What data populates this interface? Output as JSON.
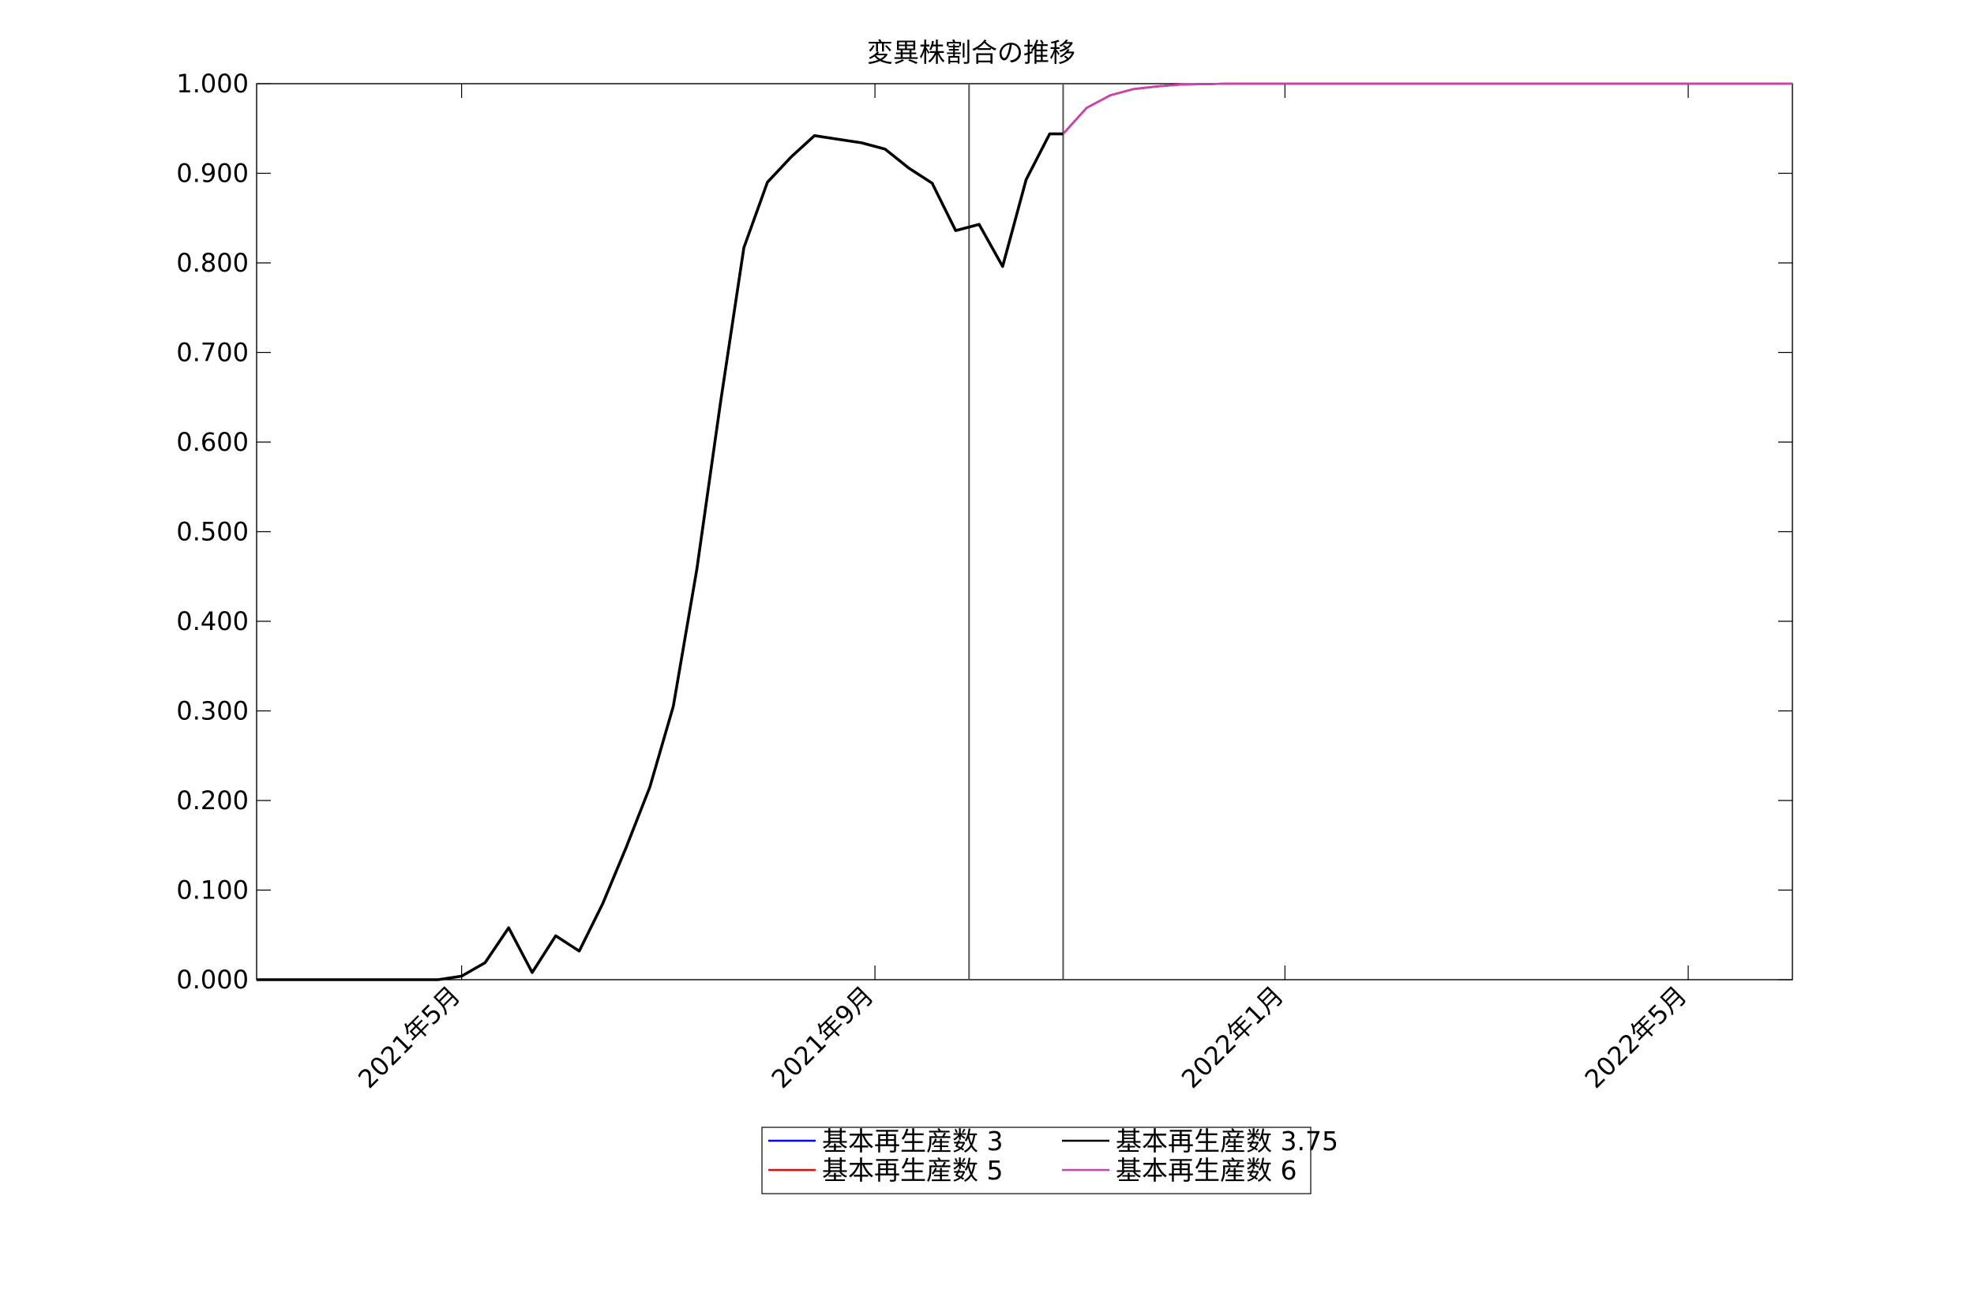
{
  "chart_data": {
    "type": "line",
    "title": "変異株割合の推移",
    "xlabel": "",
    "ylabel": "",
    "x_axis": "date",
    "xlim": [
      "2021-03-01",
      "2022-06-01"
    ],
    "ylim": [
      0,
      1
    ],
    "y_ticks": [
      0,
      0.1,
      0.2,
      0.3,
      0.4,
      0.5,
      0.6,
      0.7,
      0.8,
      0.9,
      1.0
    ],
    "y_tick_labels": [
      "0.000",
      "0.100",
      "0.200",
      "0.300",
      "0.400",
      "0.500",
      "0.600",
      "0.700",
      "0.800",
      "0.900",
      "1.000"
    ],
    "x_ticks": [
      "2021-05-01",
      "2021-09-01",
      "2022-01-01",
      "2022-05-01"
    ],
    "x_tick_labels": [
      "2021年5月",
      "2021年9月",
      "2022年1月",
      "2022年5月"
    ],
    "vertical_lines": [
      "2021-09-29",
      "2021-10-27"
    ],
    "grid": false,
    "legend_position": "bottom-center",
    "series": [
      {
        "name": "基本再生産数 3",
        "color": "#0000ff",
        "x": [
          "2021-10-27",
          "2021-11-03",
          "2021-11-10",
          "2021-11-17",
          "2021-11-24",
          "2021-12-01",
          "2021-12-08",
          "2021-12-15",
          "2021-12-22",
          "2022-01-01",
          "2022-02-01",
          "2022-03-01",
          "2022-04-01",
          "2022-05-01",
          "2022-06-01"
        ],
        "values": [
          0.944,
          0.973,
          0.987,
          0.994,
          0.997,
          0.999,
          0.9995,
          1.0,
          1.0,
          1.0,
          1.0,
          1.0,
          1.0,
          1.0,
          1.0
        ]
      },
      {
        "name": "基本再生産数 3.75",
        "color": "#000000",
        "x": [
          "2021-03-01",
          "2021-04-24",
          "2021-05-01",
          "2021-05-08",
          "2021-05-15",
          "2021-05-22",
          "2021-05-29",
          "2021-06-05",
          "2021-06-12",
          "2021-06-19",
          "2021-06-26",
          "2021-07-03",
          "2021-07-10",
          "2021-07-17",
          "2021-07-24",
          "2021-07-31",
          "2021-08-07",
          "2021-08-14",
          "2021-08-21",
          "2021-08-28",
          "2021-09-04",
          "2021-09-11",
          "2021-09-18",
          "2021-09-25",
          "2021-10-02",
          "2021-10-09",
          "2021-10-16",
          "2021-10-23",
          "2021-10-27"
        ],
        "values": [
          0.0,
          0.0,
          0.004,
          0.019,
          0.058,
          0.008,
          0.049,
          0.032,
          0.085,
          0.148,
          0.215,
          0.305,
          0.458,
          0.643,
          0.817,
          0.89,
          0.918,
          0.942,
          0.938,
          0.934,
          0.927,
          0.906,
          0.889,
          0.836,
          0.843,
          0.796,
          0.893,
          0.944,
          0.944
        ]
      },
      {
        "name": "基本再生産数 5",
        "color": "#ff0000",
        "x": [
          "2021-10-27",
          "2021-11-03",
          "2021-11-10",
          "2021-11-17",
          "2021-11-24",
          "2021-12-01",
          "2021-12-08",
          "2021-12-15",
          "2021-12-22",
          "2022-01-01",
          "2022-02-01",
          "2022-03-01",
          "2022-04-01",
          "2022-05-01",
          "2022-06-01"
        ],
        "values": [
          0.944,
          0.973,
          0.987,
          0.994,
          0.997,
          0.999,
          0.9995,
          1.0,
          1.0,
          1.0,
          1.0,
          1.0,
          1.0,
          1.0,
          1.0
        ]
      },
      {
        "name": "基本再生産数 6",
        "color": "#cc44aa",
        "x": [
          "2021-10-27",
          "2021-11-03",
          "2021-11-10",
          "2021-11-17",
          "2021-11-24",
          "2021-12-01",
          "2021-12-08",
          "2021-12-15",
          "2021-12-22",
          "2022-01-01",
          "2022-02-01",
          "2022-03-01",
          "2022-04-01",
          "2022-05-01",
          "2022-06-01"
        ],
        "values": [
          0.944,
          0.973,
          0.987,
          0.994,
          0.997,
          0.999,
          0.9995,
          1.0,
          1.0,
          1.0,
          1.0,
          1.0,
          1.0,
          1.0,
          1.0
        ]
      }
    ],
    "legend_order": [
      0,
      2,
      1,
      3
    ]
  }
}
